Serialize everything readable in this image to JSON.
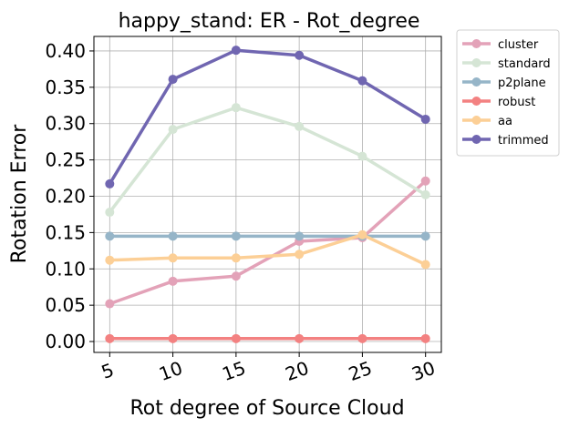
{
  "chart_data": {
    "type": "line",
    "title": "happy_stand: ER - Rot_degree",
    "xlabel": "Rot degree of Source Cloud",
    "ylabel": "Rotation Error",
    "x": [
      5,
      10,
      15,
      20,
      25,
      30
    ],
    "x_ticks": [
      "5",
      "10",
      "15",
      "20",
      "25",
      "30"
    ],
    "ylim": [
      -0.015,
      0.42
    ],
    "y_ticks": [
      "0.00",
      "0.05",
      "0.10",
      "0.15",
      "0.20",
      "0.25",
      "0.30",
      "0.35",
      "0.40"
    ],
    "grid": true,
    "legend_position": "outside-top-right",
    "series": [
      {
        "name": "cluster",
        "color": "#e3a2b8",
        "values": [
          0.052,
          0.083,
          0.09,
          0.138,
          0.143,
          0.221
        ]
      },
      {
        "name": "standard",
        "color": "#d5e5d5",
        "values": [
          0.178,
          0.292,
          0.322,
          0.296,
          0.255,
          0.202
        ]
      },
      {
        "name": "p2plane",
        "color": "#96b5c8",
        "values": [
          0.145,
          0.145,
          0.145,
          0.145,
          0.145,
          0.145
        ]
      },
      {
        "name": "robust",
        "color": "#f38181",
        "values": [
          0.004,
          0.004,
          0.004,
          0.004,
          0.004,
          0.004
        ]
      },
      {
        "name": "aa",
        "color": "#fccf96",
        "values": [
          0.112,
          0.115,
          0.115,
          0.12,
          0.147,
          0.106
        ]
      },
      {
        "name": "trimmed",
        "color": "#7066b1",
        "values": [
          0.217,
          0.361,
          0.401,
          0.394,
          0.359,
          0.306
        ]
      }
    ]
  }
}
